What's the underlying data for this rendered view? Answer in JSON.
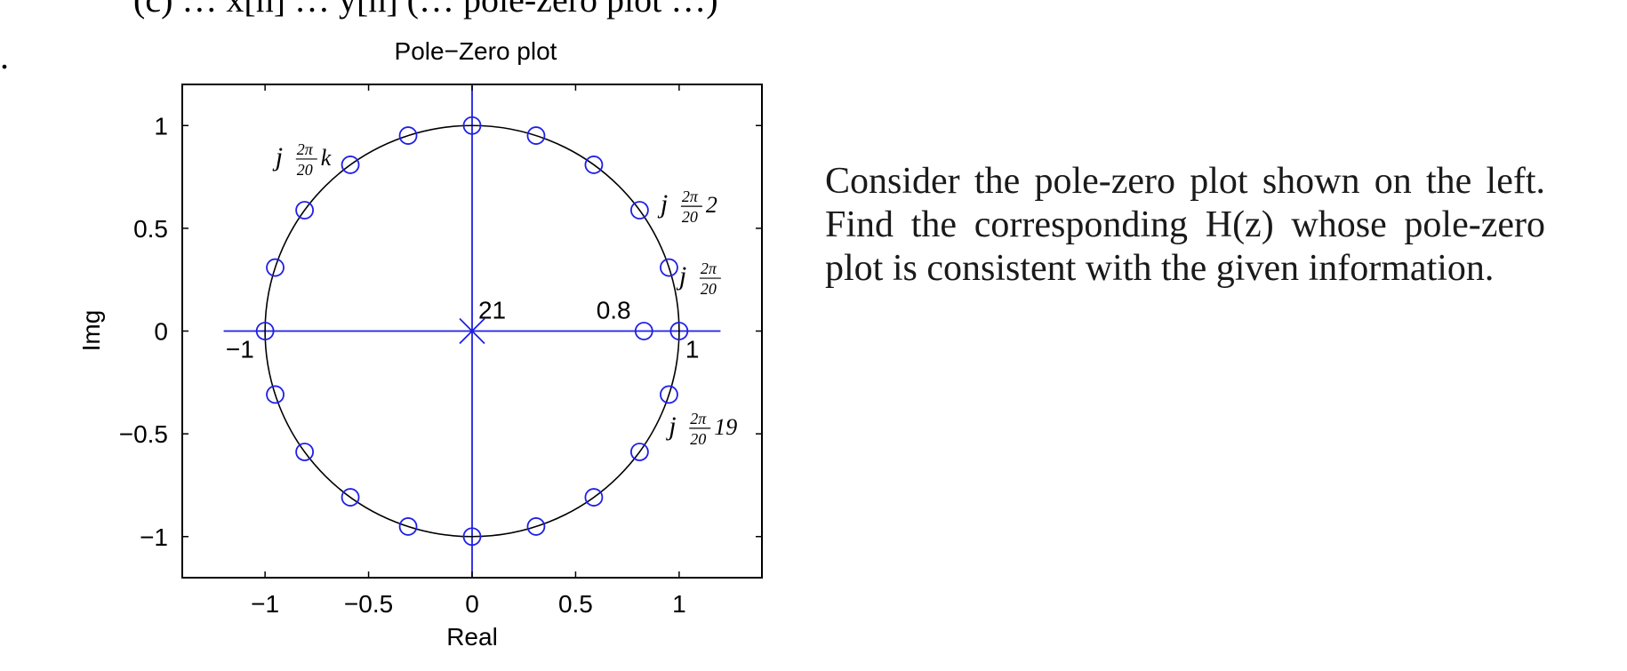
{
  "header_fragment": "(c) … x[n] … y[n] (… pole-zero plot …)",
  "list_marker": ".",
  "problem_text": "Consider the pole-zero plot shown on the left. Find the corresponding H(z) whose pole-zero plot is consistent with the given information.",
  "chart_data": {
    "type": "scatter",
    "title": "Pole−Zero plot",
    "xlabel": "Real",
    "ylabel": "Img",
    "xlim": [
      -1.4,
      1.4
    ],
    "ylim": [
      -1.2,
      1.2
    ],
    "xticks": [
      -1,
      -0.5,
      0,
      0.5,
      1
    ],
    "xtick_labels": [
      "−1",
      "−0.5",
      "0",
      "0.5",
      "1"
    ],
    "yticks": [
      -1,
      -0.5,
      0,
      0.5,
      1
    ],
    "ytick_labels": [
      "−1",
      "−0.5",
      "0",
      "0.5",
      "1"
    ],
    "grid": false,
    "unit_circle": true,
    "zeros": [
      {
        "x": 1.0,
        "y": 0.0
      },
      {
        "x": 0.951,
        "y": 0.309
      },
      {
        "x": 0.809,
        "y": 0.588
      },
      {
        "x": 0.588,
        "y": 0.809
      },
      {
        "x": 0.309,
        "y": 0.951
      },
      {
        "x": 0.0,
        "y": 1.0
      },
      {
        "x": -0.309,
        "y": 0.951
      },
      {
        "x": -0.588,
        "y": 0.809
      },
      {
        "x": -0.809,
        "y": 0.588
      },
      {
        "x": -0.951,
        "y": 0.309
      },
      {
        "x": -1.0,
        "y": 0.0
      },
      {
        "x": -0.951,
        "y": -0.309
      },
      {
        "x": -0.809,
        "y": -0.588
      },
      {
        "x": -0.588,
        "y": -0.809
      },
      {
        "x": -0.309,
        "y": -0.951
      },
      {
        "x": 0.0,
        "y": -1.0
      },
      {
        "x": 0.309,
        "y": -0.951
      },
      {
        "x": 0.588,
        "y": -0.809
      },
      {
        "x": 0.809,
        "y": -0.588
      },
      {
        "x": 0.951,
        "y": -0.309
      },
      {
        "x": 0.83,
        "y": 0.0
      }
    ],
    "poles": [
      {
        "x": 0.0,
        "y": 0.0,
        "multiplicity": 21
      }
    ],
    "annotations": [
      {
        "text": "21",
        "x": 0.03,
        "y": 0.06,
        "kind": "plain"
      },
      {
        "text": "0.8",
        "x": 0.6,
        "y": 0.06,
        "kind": "plain"
      },
      {
        "text": "−1",
        "x": -1.19,
        "y": -0.13,
        "kind": "plain"
      },
      {
        "text": "1",
        "x": 1.03,
        "y": -0.13,
        "kind": "plain"
      },
      {
        "text": "j",
        "frac_num": "2π",
        "frac_den": "20",
        "suffix": "k",
        "x": -0.95,
        "y": 0.85,
        "kind": "math"
      },
      {
        "text": "j",
        "frac_num": "2π",
        "frac_den": "20",
        "suffix": "2",
        "x": 0.91,
        "y": 0.62,
        "kind": "math"
      },
      {
        "text": "j",
        "frac_num": "2π",
        "frac_den": "20",
        "suffix": "",
        "x": 1.0,
        "y": 0.27,
        "kind": "math"
      },
      {
        "text": "j",
        "frac_num": "2π",
        "frac_den": "20",
        "suffix": "19",
        "x": 0.95,
        "y": -0.46,
        "kind": "math"
      }
    ]
  }
}
